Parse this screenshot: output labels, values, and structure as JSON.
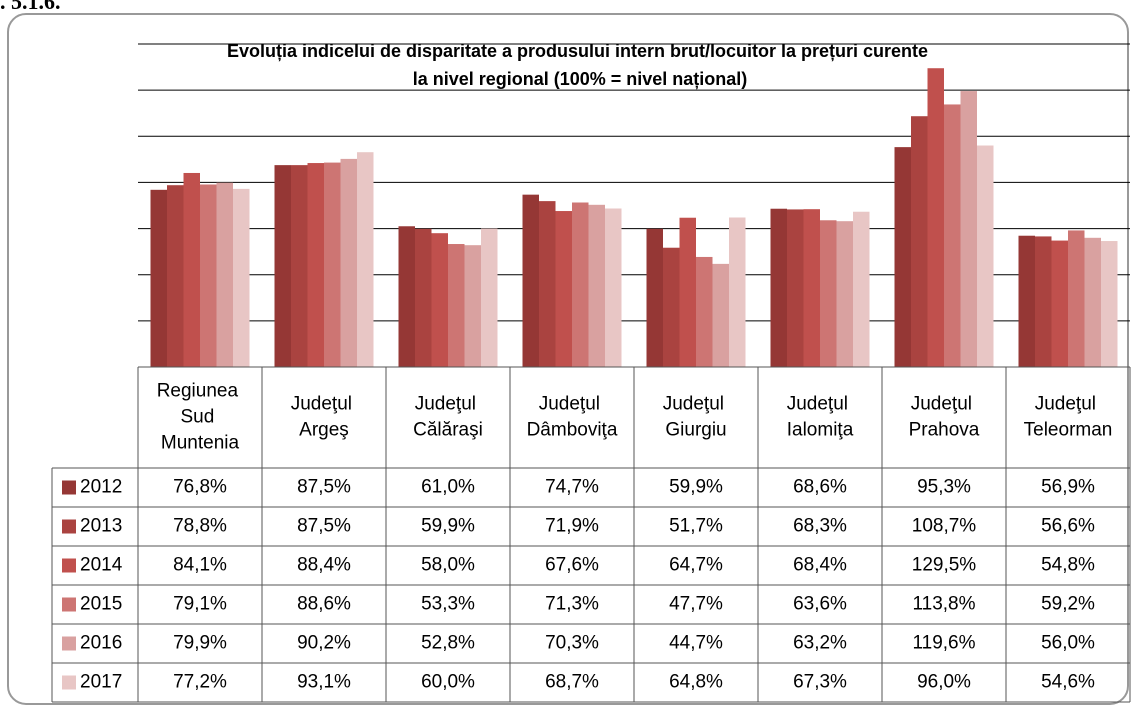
{
  "chart_data": {
    "type": "bar",
    "caption": ". 5.1.6.",
    "title": "Evoluția indicelui de disparitate a produsului intern brut/locuitor la prețuri curente la nivel regional (100% = nivel național)",
    "categories": [
      "Regiunea Sud Muntenia",
      "Judeţul Argeş",
      "Judeţul Călăraşi",
      "Judeţul Dâmboviţa",
      "Judeţul Giurgiu",
      "Judeţul Ialomiţa",
      "Judeţul Prahova",
      "Judeţul Teleorman"
    ],
    "series": [
      {
        "name": "2012",
        "color": "#953735",
        "values": [
          76.8,
          87.5,
          61.0,
          74.7,
          59.9,
          68.6,
          95.3,
          56.9
        ],
        "value_labels": [
          "76,8%",
          "87,5%",
          "61,0%",
          "74,7%",
          "59,9%",
          "68,6%",
          "95,3%",
          "56,9%"
        ]
      },
      {
        "name": "2013",
        "color": "#aa4340",
        "values": [
          78.8,
          87.5,
          59.9,
          71.9,
          51.7,
          68.3,
          108.7,
          56.6
        ],
        "value_labels": [
          "78,8%",
          "87,5%",
          "59,9%",
          "71,9%",
          "51,7%",
          "68,3%",
          "108,7%",
          "56,6%"
        ]
      },
      {
        "name": "2014",
        "color": "#c0504d",
        "values": [
          84.1,
          88.4,
          58.0,
          67.6,
          64.7,
          68.4,
          129.5,
          54.8
        ],
        "value_labels": [
          "84,1%",
          "88,4%",
          "58,0%",
          "67,6%",
          "64,7%",
          "68,4%",
          "129,5%",
          "54,8%"
        ]
      },
      {
        "name": "2015",
        "color": "#cd7573",
        "values": [
          79.1,
          88.6,
          53.3,
          71.3,
          47.7,
          63.6,
          113.8,
          59.2
        ],
        "value_labels": [
          "79,1%",
          "88,6%",
          "53,3%",
          "71,3%",
          "47,7%",
          "63,6%",
          "113,8%",
          "59,2%"
        ]
      },
      {
        "name": "2016",
        "color": "#d9a1a0",
        "values": [
          79.9,
          90.2,
          52.8,
          70.3,
          44.7,
          63.2,
          119.6,
          56.0
        ],
        "value_labels": [
          "79,9%",
          "90,2%",
          "52,8%",
          "70,3%",
          "44,7%",
          "63,2%",
          "119,6%",
          "56,0%"
        ]
      },
      {
        "name": "2017",
        "color": "#e8c6c5",
        "values": [
          77.2,
          93.1,
          60.0,
          68.7,
          64.8,
          67.3,
          96.0,
          54.6
        ],
        "value_labels": [
          "77,2%",
          "93,1%",
          "60,0%",
          "68,7%",
          "64,8%",
          "67,3%",
          "96,0%",
          "54,6%"
        ]
      }
    ],
    "ylim": [
      0,
      140
    ],
    "yticks": [
      0,
      20,
      40,
      60,
      80,
      100,
      120,
      140
    ],
    "grid": true
  }
}
